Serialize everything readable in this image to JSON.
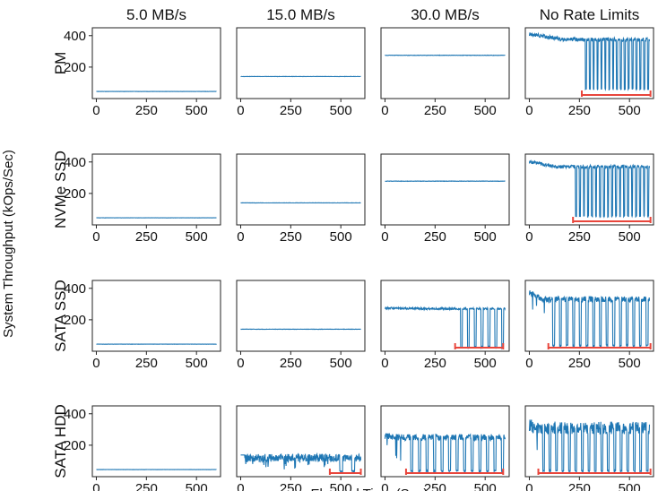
{
  "chart_data": {
    "type": "line",
    "y_axis_label": "System Throughput (kOps/Sec)",
    "x_axis_label": "Elapsed Time (Sec)",
    "column_titles": [
      "5.0 MB/s",
      "15.0 MB/s",
      "30.0 MB/s",
      "No Rate Limits"
    ],
    "row_labels": [
      "PM",
      "NVMe SSD",
      "SATA SSD",
      "SATA HDD"
    ],
    "xlim": [
      -20,
      620
    ],
    "ylim": [
      0,
      450
    ],
    "x_ticks": [
      0,
      250,
      500
    ],
    "y_ticks": [
      200,
      400
    ],
    "series_color": "#1f77b4",
    "interval_color": "#e8463c",
    "subplots": [
      {
        "row": 0,
        "col": 0,
        "pattern": "flat",
        "level": 45,
        "noise": 1
      },
      {
        "row": 0,
        "col": 1,
        "pattern": "flat",
        "level": 140,
        "noise": 1.5
      },
      {
        "row": 0,
        "col": 2,
        "pattern": "flat",
        "level": 275,
        "noise": 2
      },
      {
        "row": 0,
        "col": 3,
        "pattern": "stall",
        "high": 375,
        "low": 55,
        "start": 270,
        "dips": 17,
        "initial": 410,
        "noise": 12,
        "interval": [
          262,
          605
        ]
      },
      {
        "row": 1,
        "col": 0,
        "pattern": "flat",
        "level": 45,
        "noise": 1
      },
      {
        "row": 1,
        "col": 1,
        "pattern": "flat",
        "level": 140,
        "noise": 1.5
      },
      {
        "row": 1,
        "col": 2,
        "pattern": "flat",
        "level": 278,
        "noise": 2
      },
      {
        "row": 1,
        "col": 3,
        "pattern": "stall",
        "high": 370,
        "low": 50,
        "start": 220,
        "dips": 19,
        "initial": 400,
        "noise": 10,
        "interval": [
          218,
          605
        ]
      },
      {
        "row": 2,
        "col": 0,
        "pattern": "flat",
        "level": 45,
        "noise": 1
      },
      {
        "row": 2,
        "col": 1,
        "pattern": "flat",
        "level": 140,
        "noise": 2
      },
      {
        "row": 2,
        "col": 2,
        "pattern": "stall",
        "high": 270,
        "low": 20,
        "start": 360,
        "dips": 7,
        "initial": 275,
        "noise": 6,
        "interval": [
          350,
          590
        ]
      },
      {
        "row": 2,
        "col": 3,
        "pattern": "stall",
        "high": 330,
        "low": 30,
        "start": 100,
        "dips": 15,
        "initial": 375,
        "noise": 18,
        "interval": [
          95,
          605
        ]
      },
      {
        "row": 3,
        "col": 0,
        "pattern": "flat",
        "level": 45,
        "noise": 1
      },
      {
        "row": 3,
        "col": 1,
        "pattern": "noisy",
        "level": 120,
        "noise": 25,
        "tail_start": 450,
        "tail_low": 30,
        "interval": [
          445,
          600
        ]
      },
      {
        "row": 3,
        "col": 2,
        "pattern": "stall",
        "high": 250,
        "low": 30,
        "start": 110,
        "dips": 13,
        "initial": 260,
        "noise": 20,
        "interval": [
          105,
          590
        ]
      },
      {
        "row": 3,
        "col": 3,
        "pattern": "stall",
        "high": 310,
        "low": 30,
        "start": 50,
        "dips": 17,
        "initial": 330,
        "noise": 40,
        "interval": [
          45,
          605
        ]
      }
    ]
  }
}
